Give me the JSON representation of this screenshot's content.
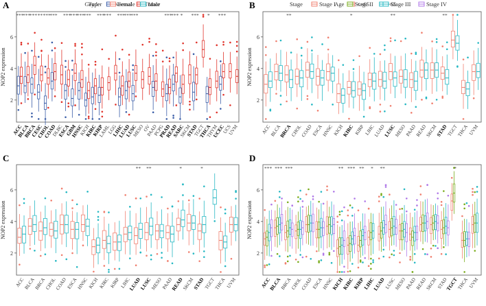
{
  "colors": {
    "normal": "#3b5ea8",
    "tumor": "#e0332b",
    "young": "#f08070",
    "old": "#26b8c3",
    "female": "#f08070",
    "male": "#26b8c3",
    "stage1": "#f08070",
    "stage2": "#7aac1c",
    "stage3": "#26b8c3",
    "stage4": "#b079e8"
  },
  "chart_data": [
    {
      "panel": "A",
      "type": "box",
      "legend_title": "Type",
      "legend": [
        "Normal",
        "Tumor"
      ],
      "group_keys": [
        "normal",
        "tumor"
      ],
      "ylabel": "NOP2 expression",
      "yticks": [
        2,
        4,
        6
      ],
      "ylim": [
        0.6,
        7.6
      ],
      "categories": [
        "ACC",
        "BLCA",
        "BRCA",
        "CESC",
        "CHOL",
        "COAD",
        "DLBC",
        "ESCA",
        "GBM",
        "HNSC",
        "KICH",
        "KIRC",
        "KIRP",
        "LAML",
        "LGG",
        "LIHC",
        "LUAD",
        "LUSC",
        "MESO",
        "OV",
        "PAAD",
        "PCPG",
        "PRAD",
        "READ",
        "SARC",
        "SKCM",
        "STAD",
        "TGCT",
        "THCA",
        "THYM",
        "UCEC",
        "UCS",
        "UVM"
      ],
      "bold": [
        "ACC",
        "BLCA",
        "BRCA",
        "CESC",
        "CHOL",
        "COAD",
        "ESCA",
        "GBM",
        "HNSC",
        "KIRC",
        "KIRP",
        "LIHC",
        "LUAD",
        "LUSC",
        "PRAD",
        "READ",
        "SARC",
        "STAD",
        "THCA",
        "UCEC"
      ],
      "sig": [
        "***",
        "***",
        "***",
        "**",
        "***",
        "***",
        "",
        "***",
        "***",
        "***",
        "***",
        "",
        "***",
        "***",
        "",
        "***",
        "***",
        "***",
        "",
        "",
        "",
        "",
        "***",
        "***",
        "*",
        "",
        "***",
        "",
        "*",
        "",
        "***",
        "",
        ""
      ],
      "medians": [
        [
          2.9,
          3.5
        ],
        [
          2.9,
          3.6
        ],
        [
          3.0,
          4.2
        ],
        [
          2.5,
          3.6
        ],
        [
          1.8,
          3.4
        ],
        [
          3.2,
          3.8
        ],
        [
          null,
          3.6
        ],
        [
          2.6,
          3.3
        ],
        [
          2.1,
          3.7
        ],
        [
          2.6,
          3.3
        ],
        [
          2.0,
          2.6
        ],
        [
          2.2,
          2.9
        ],
        [
          2.3,
          2.8
        ],
        [
          null,
          3.1
        ],
        [
          null,
          3.7
        ],
        [
          2.2,
          2.9
        ],
        [
          2.6,
          3.2
        ],
        [
          2.4,
          3.7
        ],
        [
          null,
          3.3
        ],
        [
          null,
          3.5
        ],
        [
          2.8,
          3.2
        ],
        [
          null,
          2.7
        ],
        [
          2.4,
          2.8
        ],
        [
          3.0,
          3.7
        ],
        [
          2.2,
          3.0
        ],
        [
          null,
          3.6
        ],
        [
          2.5,
          3.6
        ],
        [
          null,
          5.2
        ],
        [
          2.4,
          2.8
        ],
        [
          null,
          3.2
        ],
        [
          3.0,
          3.8
        ],
        [
          null,
          3.8
        ],
        [
          null,
          3.5
        ]
      ]
    },
    {
      "panel": "B",
      "type": "box",
      "legend_title": "Age",
      "legend": [
        "<=65",
        ">65"
      ],
      "group_keys": [
        "young",
        "old"
      ],
      "ylabel": "NOP2 expression",
      "yticks": [
        2,
        4,
        6
      ],
      "ylim": [
        0.6,
        7.6
      ],
      "categories": [
        "ACC",
        "BLCA",
        "BRCA",
        "CHOL",
        "COAD",
        "ESCA",
        "HNSC",
        "KICH",
        "KIRC",
        "KIRP",
        "LIHC",
        "LUAD",
        "LUSC",
        "MESO",
        "PAAD",
        "READ",
        "SKCM",
        "STAD",
        "TGCT",
        "THCA",
        "UVM"
      ],
      "bold": [
        "BRCA",
        "KIRC",
        "LUSC",
        "STAD"
      ],
      "sig": [
        "",
        "",
        "**",
        "",
        "",
        "",
        "",
        "",
        "*",
        "",
        "",
        "",
        "**",
        "",
        "",
        "",
        "",
        "**",
        "",
        "",
        ""
      ],
      "medians": [
        [
          3.0,
          3.2
        ],
        [
          3.8,
          3.7
        ],
        [
          3.6,
          3.3
        ],
        [
          3.5,
          3.4
        ],
        [
          3.9,
          3.8
        ],
        [
          3.5,
          3.4
        ],
        [
          3.8,
          3.7
        ],
        [
          2.4,
          2.3
        ],
        [
          2.8,
          2.6
        ],
        [
          2.7,
          2.6
        ],
        [
          3.3,
          3.2
        ],
        [
          3.3,
          3.2
        ],
        [
          3.8,
          3.4
        ],
        [
          3.5,
          3.3
        ],
        [
          3.3,
          3.2
        ],
        [
          3.9,
          3.9
        ],
        [
          3.9,
          3.9
        ],
        [
          3.7,
          3.4
        ],
        [
          5.8,
          5.6
        ],
        [
          2.8,
          2.7
        ],
        [
          3.8,
          3.8
        ]
      ]
    },
    {
      "panel": "C",
      "type": "box",
      "legend_title": "Gender",
      "legend": [
        "Female",
        "Male"
      ],
      "group_keys": [
        "female",
        "male"
      ],
      "ylabel": "NOP2 expression",
      "yticks": [
        2,
        4,
        6
      ],
      "ylim": [
        0.6,
        7.6
      ],
      "categories": [
        "ACC",
        "BLCA",
        "BRCA",
        "CHOL",
        "COAD",
        "ESCA",
        "HNSC",
        "KICH",
        "KIRC",
        "KIRP",
        "LIHC",
        "LUAD",
        "LUSC",
        "MESO",
        "PAAD",
        "READ",
        "SKCM",
        "STAD",
        "TGCT",
        "THCA",
        "UVM"
      ],
      "bold": [
        "LUAD",
        "LUSC",
        "READ",
        "STAD"
      ],
      "sig": [
        "",
        "",
        "",
        "",
        "",
        "",
        "",
        "",
        "",
        "",
        "",
        "**",
        "**",
        "",
        "",
        "*",
        "",
        "*",
        "",
        "",
        ""
      ],
      "medians": [
        [
          3.0,
          3.2
        ],
        [
          3.7,
          3.8
        ],
        [
          3.4,
          3.6
        ],
        [
          3.5,
          3.4
        ],
        [
          3.8,
          3.8
        ],
        [
          3.5,
          3.5
        ],
        [
          3.8,
          3.7
        ],
        [
          2.4,
          2.5
        ],
        [
          2.8,
          2.6
        ],
        [
          2.7,
          2.7
        ],
        [
          3.2,
          3.3
        ],
        [
          3.1,
          3.5
        ],
        [
          3.3,
          3.7
        ],
        [
          3.4,
          3.4
        ],
        [
          3.3,
          3.2
        ],
        [
          3.8,
          4.1
        ],
        [
          3.9,
          3.9
        ],
        [
          3.4,
          3.8
        ],
        [
          null,
          5.5
        ],
        [
          2.8,
          2.7
        ],
        [
          3.8,
          3.8
        ]
      ]
    },
    {
      "panel": "D",
      "type": "box",
      "legend_title": "Stage",
      "legend": [
        "Stage I",
        "Stage II",
        "Stage III",
        "Stage IV"
      ],
      "group_keys": [
        "stage1",
        "stage2",
        "stage3",
        "stage4"
      ],
      "ylabel": "NOP2 expression",
      "yticks": [
        2,
        4,
        6
      ],
      "ylim": [
        0.6,
        7.6
      ],
      "categories": [
        "ACC",
        "BLCA",
        "BRCA",
        "CHOL",
        "COAD",
        "ESCA",
        "HNSC",
        "KICH",
        "KIRC",
        "KIRP",
        "LIHC",
        "LUAD",
        "LUSC",
        "MESO",
        "PAAD",
        "READ",
        "SKCM",
        "STAD",
        "TGCT",
        "THCA",
        "UVM"
      ],
      "bold": [
        "ACC",
        "BLCA",
        "KICH",
        "KIRC",
        "KIRP",
        "LIHC",
        "LUAD",
        "TGCT"
      ],
      "sig": [
        "***",
        "***",
        "***",
        "",
        "",
        "",
        "",
        "**",
        "***",
        "**",
        "*",
        "**",
        "",
        "",
        "",
        "",
        "",
        "",
        "*",
        "",
        ""
      ],
      "medians": [
        [
          2.9,
          3.0,
          3.3,
          3.6
        ],
        [
          3.6,
          3.7,
          3.8,
          3.9
        ],
        [
          3.3,
          3.4,
          3.6,
          3.5
        ],
        [
          3.4,
          3.5,
          3.5,
          3.6
        ],
        [
          3.8,
          3.8,
          3.9,
          3.9
        ],
        [
          3.5,
          3.5,
          3.6,
          3.6
        ],
        [
          3.7,
          3.8,
          3.7,
          3.8
        ],
        [
          2.3,
          2.4,
          2.5,
          2.8
        ],
        [
          2.5,
          2.6,
          2.9,
          3.1
        ],
        [
          2.5,
          2.8,
          3.1,
          3.3
        ],
        [
          3.0,
          3.3,
          3.4,
          null
        ],
        [
          3.2,
          3.4,
          3.6,
          3.8
        ],
        [
          3.5,
          3.6,
          3.7,
          3.6
        ],
        [
          3.4,
          3.4,
          3.5,
          3.3
        ],
        [
          3.2,
          3.0,
          3.3,
          3.3
        ],
        [
          3.8,
          3.9,
          3.9,
          4.0
        ],
        [
          3.8,
          3.9,
          4.0,
          3.9
        ],
        [
          3.5,
          3.6,
          3.7,
          3.6
        ],
        [
          5.3,
          5.8,
          null,
          null
        ],
        [
          2.8,
          2.8,
          2.9,
          2.9
        ],
        [
          3.8,
          3.9,
          3.9,
          null
        ]
      ]
    }
  ]
}
